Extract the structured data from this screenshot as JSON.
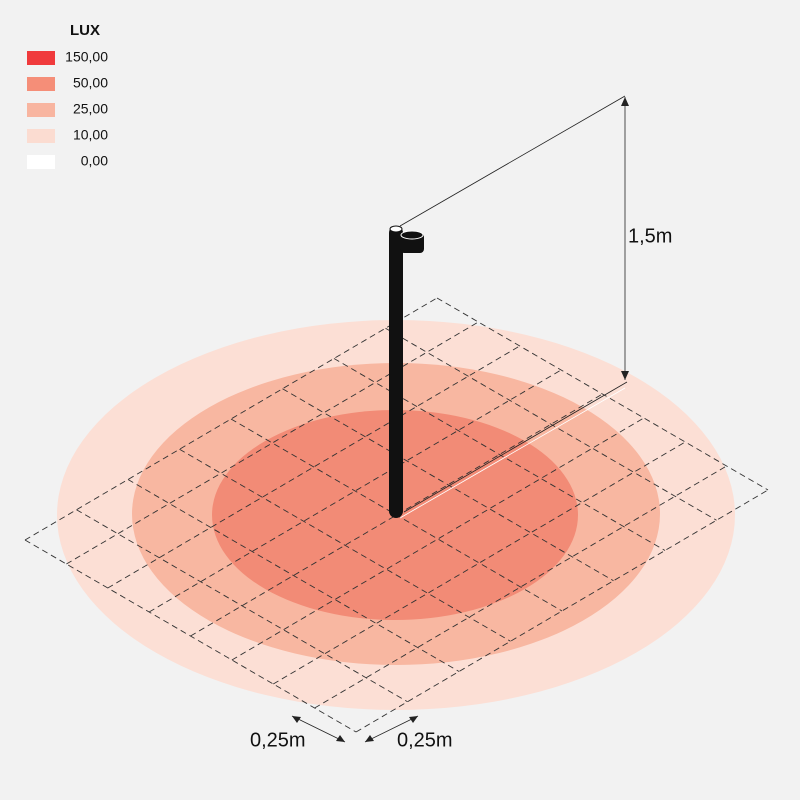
{
  "legend": {
    "title": "LUX",
    "items": [
      {
        "label": "150,00",
        "color": "#f03a3c"
      },
      {
        "label": "50,00",
        "color": "#f58e78"
      },
      {
        "label": "25,00",
        "color": "#f8b5a0"
      },
      {
        "label": "10,00",
        "color": "#fbdcd1"
      },
      {
        "label": "0,00",
        "color": "#ffffff"
      }
    ]
  },
  "dimensions": {
    "height": "1,5m",
    "grid_x": "0,25m",
    "grid_y": "0,25m"
  }
}
